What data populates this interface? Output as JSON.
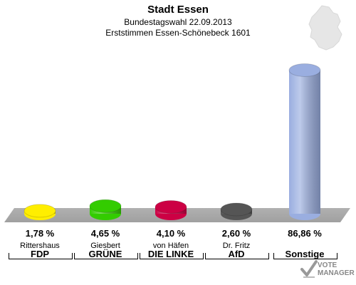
{
  "header": {
    "title": "Stadt Essen",
    "subtitle": "Bundestagswahl 22.09.2013",
    "subtitle2": "Erststimmen Essen-Schönebeck 1601"
  },
  "chart_data": {
    "type": "bar",
    "categories": [
      "FDP",
      "GRÜNE",
      "DIE LINKE",
      "AfD",
      "Sonstige"
    ],
    "candidates": [
      "Rittershaus",
      "Giesbert",
      "von Häfen",
      "Dr. Fritz",
      ""
    ],
    "values": [
      1.78,
      4.65,
      4.1,
      2.6,
      86.86
    ],
    "value_labels": [
      "1,78 %",
      "4,65 %",
      "4,10 %",
      "2,60 %",
      "86,86 %"
    ],
    "colors": [
      "#ffee00",
      "#33cc00",
      "#cc0044",
      "#555555",
      "#9aaee0"
    ],
    "ylim": [
      0,
      100
    ]
  },
  "logo": {
    "line1": "VOTE",
    "line2": "MANAGER"
  }
}
